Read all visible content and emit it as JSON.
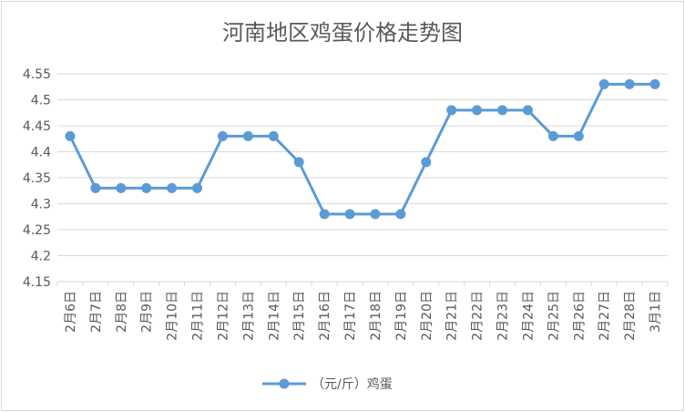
{
  "chart_data": {
    "type": "line",
    "title": "河南地区鸡蛋价格走势图",
    "xlabel": "",
    "ylabel": "",
    "categories": [
      "2月6日",
      "2月7日",
      "2月8日",
      "2月9日",
      "2月10日",
      "2月11日",
      "2月12日",
      "2月13日",
      "2月14日",
      "2月15日",
      "2月16日",
      "2月17日",
      "2月18日",
      "2月19日",
      "2月20日",
      "2月21日",
      "2月22日",
      "2月23日",
      "2月24日",
      "2月25日",
      "2月26日",
      "2月27日",
      "2月28日",
      "3月1日"
    ],
    "series": [
      {
        "name": "（元/斤）鸡蛋",
        "values": [
          4.43,
          4.33,
          4.33,
          4.33,
          4.33,
          4.33,
          4.43,
          4.43,
          4.43,
          4.38,
          4.28,
          4.28,
          4.28,
          4.28,
          4.38,
          4.48,
          4.48,
          4.48,
          4.48,
          4.43,
          4.43,
          4.53,
          4.53,
          4.53
        ],
        "color": "#5b9bd5"
      }
    ],
    "ylim": [
      4.15,
      4.55
    ],
    "yticks": [
      "4.15",
      "4.2",
      "4.25",
      "4.3",
      "4.35",
      "4.4",
      "4.45",
      "4.5",
      "4.55"
    ],
    "grid": true,
    "legend_position": "bottom"
  },
  "colors": {
    "line": "#5b9bd5",
    "grid": "#d9d9d9",
    "text": "#595959",
    "border": "#d9d9d9"
  }
}
